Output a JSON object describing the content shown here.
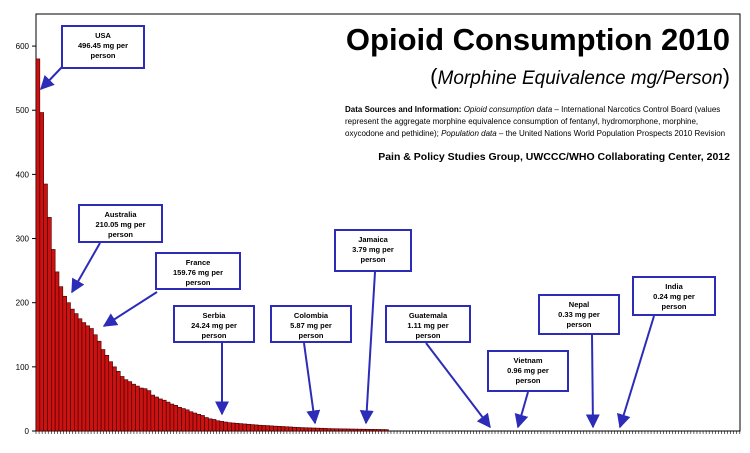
{
  "chart_data": {
    "type": "bar",
    "title": "Opioid Consumption 2010",
    "subtitle": "Morphine Equivalence mg/Person",
    "sources": {
      "label": "Data Sources and Information:",
      "consumption_label": "Opioid consumption data",
      "consumption_text": " – International Narcotics Control Board (values represent the aggregate morphine equivalence consumption of fentanyl, hydromorphone, morphine, oxycodone and pethidine);",
      "population_label": "Population data",
      "population_text": " – the United Nations World Population Prospects 2010 Revision"
    },
    "credit": "Pain & Policy Studies Group, UWCCC/WHO Collaborating Center, 2012",
    "ylim": [
      0,
      650
    ],
    "yticks": [
      "0",
      "100",
      "200",
      "300",
      "400",
      "500",
      "600"
    ],
    "color": "#cc1111",
    "values": [
      580,
      496.45,
      385,
      333,
      283,
      248,
      225,
      210.05,
      200,
      190,
      183,
      175,
      169,
      164,
      159.76,
      150,
      140,
      127,
      118,
      108,
      100,
      93,
      85,
      80,
      77,
      73,
      70,
      67,
      66,
      63,
      56,
      53,
      50,
      48,
      45,
      42,
      40,
      37,
      35,
      33,
      30,
      28,
      26,
      24.24,
      21,
      19,
      18,
      16,
      15,
      14,
      13,
      12.5,
      12,
      11.5,
      11,
      10.5,
      10,
      9.5,
      9,
      8.7,
      8.4,
      8,
      7.6,
      7.3,
      7,
      6.6,
      6.3,
      5.87,
      5.6,
      5.3,
      5.1,
      4.9,
      4.7,
      4.5,
      4.3,
      4.1,
      3.79,
      3.6,
      3.5,
      3.4,
      3.3,
      3.2,
      3.1,
      3.0,
      2.9,
      2.8,
      2.7,
      2.6,
      2.5,
      2.4,
      2.3,
      2.2
    ],
    "callouts": [
      {
        "country": "USA",
        "value": "496.45 mg per",
        "unit": "person"
      },
      {
        "country": "Australia",
        "value": "210.05 mg per",
        "unit": "person"
      },
      {
        "country": "France",
        "value": "159.76 mg per",
        "unit": "person"
      },
      {
        "country": "Serbia",
        "value": "24.24 mg per",
        "unit": "person"
      },
      {
        "country": "Colombia",
        "value": "5.87 mg per",
        "unit": "person"
      },
      {
        "country": "Jamaica",
        "value": "3.79 mg per",
        "unit": "person"
      },
      {
        "country": "Guatemala",
        "value": "1.11 mg per",
        "unit": "person"
      },
      {
        "country": "Vietnam",
        "value": "0.96 mg per",
        "unit": "person"
      },
      {
        "country": "Nepal",
        "value": "0.33 mg per",
        "unit": "person"
      },
      {
        "country": "India",
        "value": "0.24 mg per",
        "unit": "person"
      }
    ]
  }
}
